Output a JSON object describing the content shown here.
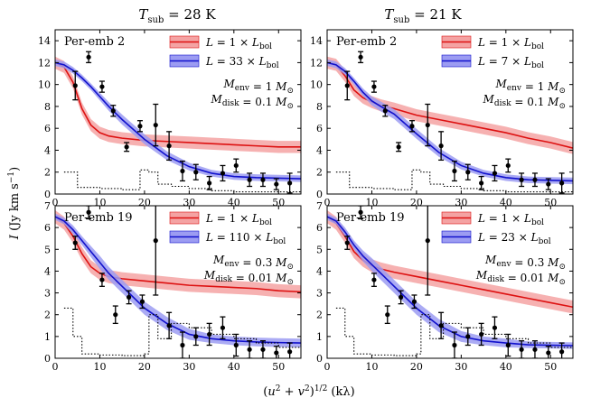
{
  "figure": {
    "column_titles": [
      "T_sub = 28 K",
      "T_sub = 21 K"
    ],
    "xlabel": "(u² + v²)^{1/2} (kλ)",
    "ylabel": "I (Jy km s⁻¹)"
  },
  "chart_data": [
    {
      "type": "line",
      "panel": "top-left",
      "source": "Per-emb 2",
      "column": "T_sub = 28 K",
      "xlim": [
        0,
        55
      ],
      "ylim": [
        0,
        15
      ],
      "xticks": [
        0,
        10,
        20,
        30,
        40,
        50
      ],
      "yticks": [
        0,
        2,
        4,
        6,
        8,
        10,
        12,
        14
      ],
      "legend": [
        "L = 1 × L_bol",
        "L = 33 × L_bol"
      ],
      "annotations": [
        "M_env = 1 M_⊙",
        "M_disk = 0.1 M_⊙"
      ],
      "series": [
        {
          "name": "L = 1 × L_bol",
          "color": "#dd1111",
          "x": [
            0,
            2,
            4,
            6,
            8,
            10,
            12,
            15,
            20,
            25,
            30,
            35,
            40,
            45,
            50,
            55
          ],
          "y": [
            12.0,
            11.6,
            10.2,
            7.8,
            6.3,
            5.6,
            5.3,
            5.1,
            4.9,
            4.8,
            4.7,
            4.6,
            4.5,
            4.4,
            4.3,
            4.3
          ],
          "band": [
            0.55,
            0.55,
            0.55,
            0.55,
            0.55,
            0.55,
            0.55,
            0.55,
            0.55,
            0.55,
            0.55,
            0.55,
            0.55,
            0.55,
            0.55,
            0.55
          ]
        },
        {
          "name": "L = 33 × L_bol",
          "color": "#1111cc",
          "x": [
            0,
            2,
            4,
            6,
            8,
            10,
            12,
            15,
            20,
            25,
            30,
            35,
            40,
            45,
            50,
            55
          ],
          "y": [
            12.0,
            11.8,
            11.3,
            10.6,
            9.8,
            8.9,
            8.0,
            6.8,
            5.0,
            3.5,
            2.5,
            1.9,
            1.6,
            1.5,
            1.45,
            1.4
          ],
          "band": [
            0.3,
            0.3,
            0.3,
            0.3,
            0.3,
            0.35,
            0.4,
            0.45,
            0.45,
            0.4,
            0.35,
            0.3,
            0.3,
            0.3,
            0.3,
            0.3
          ]
        }
      ],
      "data_points": {
        "x": [
          4.5,
          7.5,
          10.5,
          13,
          16,
          19,
          22.5,
          25.5,
          28.5,
          31.5,
          34.5,
          37.5,
          40.5,
          43.5,
          46.5,
          49.5,
          52.5
        ],
        "y": [
          9.9,
          12.5,
          9.8,
          7.6,
          4.3,
          6.2,
          6.3,
          4.4,
          2.1,
          2.0,
          1.0,
          1.9,
          2.6,
          1.3,
          1.3,
          0.9,
          1.0
        ],
        "err": [
          1.3,
          0.5,
          0.5,
          0.5,
          0.4,
          0.5,
          1.9,
          1.3,
          0.9,
          0.7,
          0.6,
          0.7,
          0.6,
          0.6,
          0.6,
          0.5,
          0.9
        ]
      },
      "noise_level": {
        "x": [
          2,
          5,
          5,
          10,
          10,
          15,
          15,
          19,
          19,
          21,
          21,
          23,
          23,
          26,
          26,
          30,
          30,
          35,
          35,
          40,
          40,
          45,
          45,
          50,
          50,
          55
        ],
        "y": [
          2.0,
          2.0,
          0.6,
          0.6,
          0.5,
          0.5,
          0.4,
          0.4,
          2.2,
          2.2,
          2.0,
          2.0,
          0.9,
          0.9,
          0.7,
          0.7,
          0.5,
          0.5,
          0.3,
          0.3,
          0.2,
          0.2,
          0.2,
          0.2,
          0.2,
          0.2
        ]
      }
    },
    {
      "type": "line",
      "panel": "top-right",
      "source": "Per-emb 2",
      "column": "T_sub = 21 K",
      "xlim": [
        0,
        55
      ],
      "ylim": [
        0,
        15
      ],
      "xticks": [
        0,
        10,
        20,
        30,
        40,
        50
      ],
      "yticks": [
        0,
        2,
        4,
        6,
        8,
        10,
        12,
        14
      ],
      "legend": [
        "L = 1 × L_bol",
        "L = 7 × L_bol"
      ],
      "annotations": [
        "M_env = 1 M_⊙",
        "M_disk = 0.1 M_⊙"
      ],
      "series": [
        {
          "name": "L = 1 × L_bol",
          "color": "#dd1111",
          "x": [
            0,
            2,
            4,
            6,
            8,
            10,
            12,
            15,
            20,
            25,
            30,
            35,
            40,
            45,
            50,
            55
          ],
          "y": [
            12.0,
            11.8,
            10.8,
            9.5,
            8.8,
            8.4,
            8.1,
            7.8,
            7.2,
            6.8,
            6.4,
            6.0,
            5.6,
            5.1,
            4.7,
            4.2
          ],
          "band": [
            0.55,
            0.55,
            0.55,
            0.55,
            0.55,
            0.55,
            0.55,
            0.55,
            0.55,
            0.55,
            0.55,
            0.55,
            0.55,
            0.55,
            0.55,
            0.55
          ]
        },
        {
          "name": "L = 7 × L_bol",
          "color": "#1111cc",
          "x": [
            0,
            2,
            4,
            6,
            8,
            10,
            12,
            15,
            20,
            25,
            30,
            35,
            40,
            45,
            50,
            55
          ],
          "y": [
            12.0,
            11.8,
            11.2,
            10.3,
            9.3,
            8.5,
            8.0,
            7.3,
            5.5,
            3.8,
            2.6,
            1.9,
            1.5,
            1.3,
            1.25,
            1.2
          ],
          "band": [
            0.3,
            0.3,
            0.3,
            0.3,
            0.35,
            0.4,
            0.45,
            0.45,
            0.45,
            0.4,
            0.35,
            0.3,
            0.3,
            0.3,
            0.3,
            0.3
          ]
        }
      ],
      "data_points": {
        "x": [
          4.5,
          7.5,
          10.5,
          13,
          16,
          19,
          22.5,
          25.5,
          28.5,
          31.5,
          34.5,
          37.5,
          40.5,
          43.5,
          46.5,
          49.5,
          52.5
        ],
        "y": [
          9.9,
          12.5,
          9.8,
          7.6,
          4.3,
          6.2,
          6.3,
          4.4,
          2.1,
          2.0,
          1.0,
          1.9,
          2.6,
          1.3,
          1.3,
          0.9,
          1.0
        ],
        "err": [
          1.3,
          0.5,
          0.5,
          0.5,
          0.4,
          0.5,
          1.9,
          1.3,
          0.9,
          0.7,
          0.6,
          0.7,
          0.6,
          0.6,
          0.6,
          0.5,
          0.9
        ]
      },
      "noise_level": {
        "x": [
          2,
          5,
          5,
          10,
          10,
          15,
          15,
          19,
          19,
          21,
          21,
          23,
          23,
          26,
          26,
          30,
          30,
          35,
          35,
          40,
          40,
          45,
          45,
          50,
          50,
          55
        ],
        "y": [
          2.0,
          2.0,
          0.6,
          0.6,
          0.5,
          0.5,
          0.4,
          0.4,
          2.2,
          2.2,
          2.0,
          2.0,
          0.9,
          0.9,
          0.7,
          0.7,
          0.5,
          0.5,
          0.3,
          0.3,
          0.2,
          0.2,
          0.2,
          0.2,
          0.2,
          0.2
        ]
      }
    },
    {
      "type": "line",
      "panel": "bottom-left",
      "source": "Per-emb 19",
      "column": "T_sub = 28 K",
      "xlim": [
        0,
        55
      ],
      "ylim": [
        0,
        7
      ],
      "xticks": [
        0,
        10,
        20,
        30,
        40,
        50
      ],
      "yticks": [
        0,
        1,
        2,
        3,
        4,
        5,
        6,
        7
      ],
      "legend": [
        "L = 1 × L_bol",
        "L = 110 × L_bol"
      ],
      "annotations": [
        "M_env = 0.3 M_⊙",
        "M_disk = 0.01 M_⊙"
      ],
      "series": [
        {
          "name": "L = 1 × L_bol",
          "color": "#dd1111",
          "x": [
            0,
            2,
            4,
            6,
            8,
            10,
            12,
            15,
            20,
            25,
            30,
            35,
            40,
            45,
            50,
            55
          ],
          "y": [
            6.5,
            6.2,
            5.6,
            4.8,
            4.2,
            3.9,
            3.75,
            3.65,
            3.55,
            3.45,
            3.35,
            3.3,
            3.25,
            3.2,
            3.1,
            3.05
          ],
          "band": [
            0.3,
            0.3,
            0.3,
            0.3,
            0.3,
            0.3,
            0.3,
            0.3,
            0.3,
            0.3,
            0.3,
            0.3,
            0.3,
            0.3,
            0.3,
            0.3
          ]
        },
        {
          "name": "L = 110 × L_bol",
          "color": "#1111cc",
          "x": [
            0,
            2,
            4,
            6,
            8,
            10,
            12,
            15,
            20,
            25,
            30,
            35,
            40,
            45,
            50,
            55
          ],
          "y": [
            6.5,
            6.3,
            5.9,
            5.4,
            4.9,
            4.4,
            3.9,
            3.3,
            2.3,
            1.6,
            1.1,
            0.9,
            0.8,
            0.75,
            0.72,
            0.7
          ],
          "band": [
            0.15,
            0.15,
            0.2,
            0.2,
            0.25,
            0.3,
            0.3,
            0.3,
            0.3,
            0.3,
            0.25,
            0.2,
            0.2,
            0.2,
            0.2,
            0.2
          ]
        }
      ],
      "data_points": {
        "x": [
          4.5,
          7.5,
          10.5,
          13.5,
          16.5,
          19.5,
          22.5,
          25.5,
          28.5,
          31.5,
          34.5,
          37.5,
          40.5,
          43.5,
          46.5,
          49.5,
          52.5
        ],
        "y": [
          5.3,
          6.7,
          3.6,
          2.0,
          2.8,
          2.6,
          5.4,
          1.5,
          0.6,
          1.0,
          1.1,
          1.4,
          0.6,
          0.4,
          0.4,
          0.25,
          0.3
        ],
        "err": [
          0.3,
          0.3,
          0.3,
          0.4,
          0.3,
          0.3,
          2.5,
          0.6,
          0.6,
          0.4,
          0.5,
          0.5,
          0.5,
          0.4,
          0.4,
          0.3,
          0.4
        ]
      },
      "noise_level": {
        "x": [
          2,
          4,
          4,
          6,
          6,
          10,
          10,
          15,
          15,
          20,
          20,
          21,
          21,
          23,
          23,
          26,
          26,
          30,
          30,
          35,
          35,
          40,
          40,
          45,
          45,
          50,
          50,
          55
        ],
        "y": [
          2.3,
          2.3,
          1.0,
          1.0,
          0.2,
          0.2,
          0.15,
          0.15,
          0.12,
          0.12,
          0.2,
          0.2,
          2.0,
          2.0,
          0.9,
          0.9,
          1.6,
          1.6,
          1.4,
          1.4,
          1.1,
          1.1,
          0.9,
          0.9,
          0.7,
          0.7,
          0.5,
          0.5
        ]
      }
    },
    {
      "type": "line",
      "panel": "bottom-right",
      "source": "Per-emb 19",
      "column": "T_sub = 21 K",
      "xlim": [
        0,
        55
      ],
      "ylim": [
        0,
        7
      ],
      "xticks": [
        0,
        10,
        20,
        30,
        40,
        50
      ],
      "yticks": [
        0,
        1,
        2,
        3,
        4,
        5,
        6,
        7
      ],
      "legend": [
        "L = 1 × L_bol",
        "L = 23 × L_bol"
      ],
      "annotations": [
        "M_env = 0.3 M_⊙",
        "M_disk = 0.01 M_⊙"
      ],
      "series": [
        {
          "name": "L = 1 × L_bol",
          "color": "#dd1111",
          "x": [
            0,
            2,
            4,
            6,
            8,
            10,
            12,
            15,
            20,
            25,
            30,
            35,
            40,
            45,
            50,
            55
          ],
          "y": [
            6.5,
            6.2,
            5.6,
            4.9,
            4.5,
            4.25,
            4.1,
            3.95,
            3.75,
            3.55,
            3.35,
            3.15,
            2.95,
            2.75,
            2.55,
            2.35
          ],
          "band": [
            0.3,
            0.3,
            0.3,
            0.3,
            0.3,
            0.3,
            0.3,
            0.3,
            0.3,
            0.3,
            0.3,
            0.3,
            0.3,
            0.3,
            0.3,
            0.3
          ]
        },
        {
          "name": "L = 23 × L_bol",
          "color": "#1111cc",
          "x": [
            0,
            2,
            4,
            6,
            8,
            10,
            12,
            15,
            20,
            25,
            30,
            35,
            40,
            45,
            50,
            55
          ],
          "y": [
            6.5,
            6.3,
            5.8,
            5.2,
            4.7,
            4.3,
            3.9,
            3.3,
            2.3,
            1.5,
            1.0,
            0.8,
            0.7,
            0.62,
            0.6,
            0.58
          ],
          "band": [
            0.15,
            0.15,
            0.2,
            0.2,
            0.25,
            0.3,
            0.3,
            0.3,
            0.3,
            0.3,
            0.25,
            0.2,
            0.2,
            0.15,
            0.15,
            0.15
          ]
        }
      ],
      "data_points": {
        "x": [
          4.5,
          7.5,
          10.5,
          13.5,
          16.5,
          19.5,
          22.5,
          25.5,
          28.5,
          31.5,
          34.5,
          37.5,
          40.5,
          43.5,
          46.5,
          49.5,
          52.5
        ],
        "y": [
          5.3,
          6.7,
          3.6,
          2.0,
          2.8,
          2.6,
          5.4,
          1.5,
          0.6,
          1.0,
          1.1,
          1.4,
          0.6,
          0.4,
          0.4,
          0.25,
          0.3
        ],
        "err": [
          0.3,
          0.3,
          0.3,
          0.4,
          0.3,
          0.3,
          2.5,
          0.6,
          0.6,
          0.4,
          0.5,
          0.5,
          0.5,
          0.4,
          0.4,
          0.3,
          0.4
        ]
      },
      "noise_level": {
        "x": [
          2,
          4,
          4,
          6,
          6,
          10,
          10,
          15,
          15,
          20,
          20,
          21,
          21,
          23,
          23,
          26,
          26,
          30,
          30,
          35,
          35,
          40,
          40,
          45,
          45,
          50,
          50,
          55
        ],
        "y": [
          2.3,
          2.3,
          1.0,
          1.0,
          0.2,
          0.2,
          0.15,
          0.15,
          0.12,
          0.12,
          0.2,
          0.2,
          2.0,
          2.0,
          0.9,
          0.9,
          1.6,
          1.6,
          1.4,
          1.4,
          1.1,
          1.1,
          0.9,
          0.9,
          0.7,
          0.7,
          0.5,
          0.5
        ]
      }
    }
  ]
}
